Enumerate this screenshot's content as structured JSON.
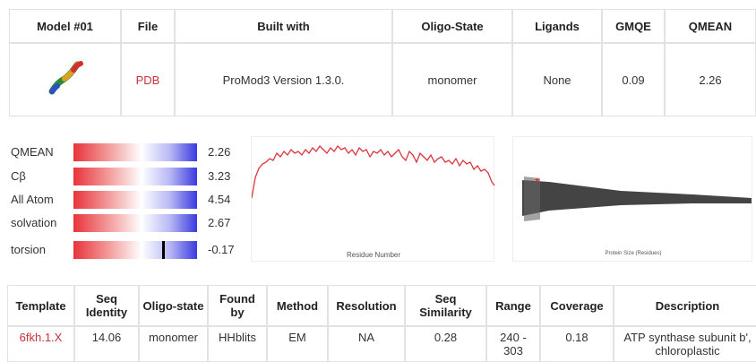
{
  "top_table": {
    "headers": [
      "Model #01",
      "File",
      "Built with",
      "Oligo-State",
      "Ligands",
      "GMQE",
      "QMEAN"
    ],
    "row": [
      "PDB",
      "ProMod3 Version 1.3.0.",
      "monomer",
      "None",
      0.09,
      2.26
    ]
  },
  "quality": [
    {
      "label": "QMEAN",
      "value": 2.26
    },
    {
      "label": "Cβ",
      "value": 3.23
    },
    {
      "label": "All Atom",
      "value": 4.54
    },
    {
      "label": "solvation",
      "value": 2.67
    },
    {
      "label": "torsion",
      "value": -0.17
    }
  ],
  "local_plot": {
    "x_label": "Residue Number"
  },
  "comparison_plot": {
    "x_label": "Protein Size (Residues)"
  },
  "template_table": {
    "headers": [
      "Template",
      "Seq Identity",
      "Oligo-state",
      "Found by",
      "Method",
      "Resolution",
      "Seq Similarity",
      "Range",
      "Coverage",
      "Description"
    ],
    "row": [
      "6fkh.1.X",
      14.06,
      "monomer",
      "HHblits",
      "EM",
      "NA",
      0.28,
      "240 - 303",
      0.18,
      "ATP synthase subunit b', chloroplastic"
    ]
  }
}
